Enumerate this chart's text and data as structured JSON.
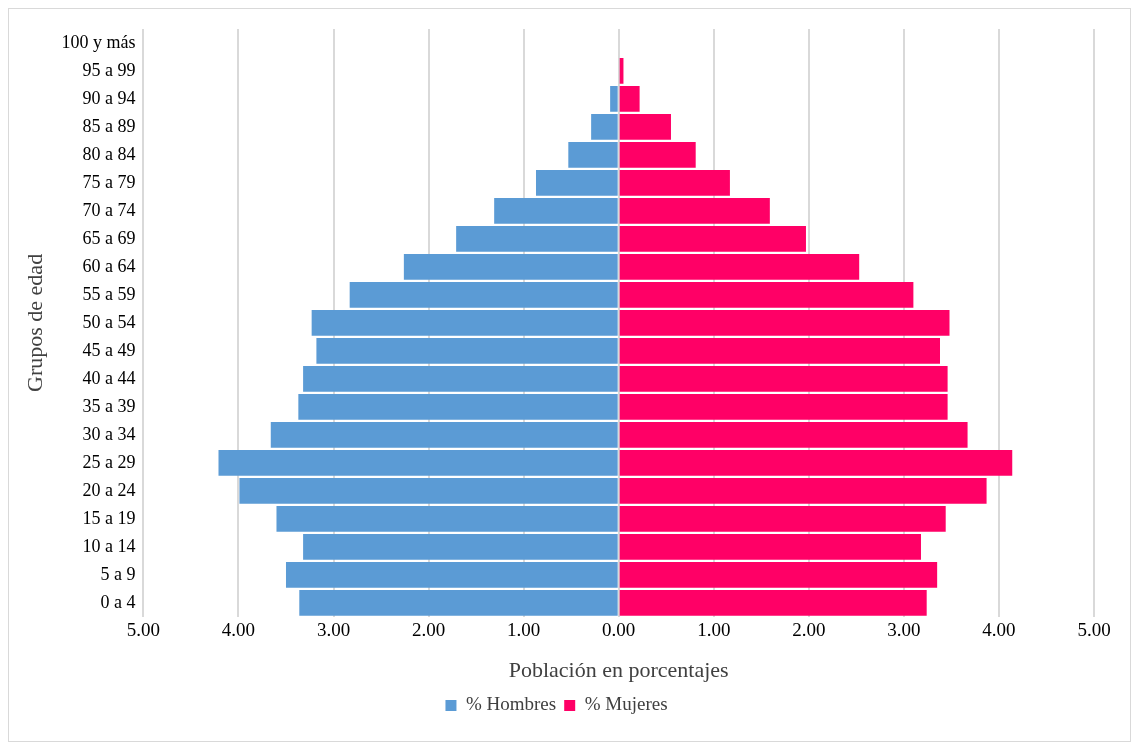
{
  "chart_data": {
    "type": "bar",
    "orientation": "horizontal",
    "stacked": true,
    "xlabel": "Población en porcentajes",
    "ylabel": "Grupos de edad",
    "categories": [
      "100 y más",
      "95 a 99",
      "90 a 94",
      "85 a 89",
      "80 a 84",
      "75 a 79",
      "70 a 74",
      "65 a 69",
      "60 a 64",
      "55 a 59",
      "50 a 54",
      "45 a 49",
      "40 a 44",
      "35 a 39",
      "30 a 34",
      "25 a 29",
      "20 a 24",
      "15 a 19",
      "10 a 14",
      "5 a 9",
      "0 a 4"
    ],
    "series": [
      {
        "name": "% Hombres",
        "color": "#5b9bd5",
        "values": [
          0,
          0,
          -0.09,
          -0.29,
          -0.53,
          -0.87,
          -1.31,
          -1.71,
          -2.26,
          -2.83,
          -3.23,
          -3.18,
          -3.32,
          -3.37,
          -3.66,
          -4.21,
          -3.99,
          -3.6,
          -3.32,
          -3.5,
          -3.36
        ]
      },
      {
        "name": "% Mujeres",
        "color": "#ff0066",
        "values": [
          0,
          0.05,
          0.22,
          0.55,
          0.81,
          1.17,
          1.59,
          1.97,
          2.53,
          3.1,
          3.48,
          3.38,
          3.46,
          3.46,
          3.67,
          4.14,
          3.87,
          3.44,
          3.18,
          3.35,
          3.24
        ]
      }
    ],
    "xlim": [
      -5,
      5
    ],
    "xticks": [
      {
        "value": -5,
        "label": "5.00"
      },
      {
        "value": -4,
        "label": "4.00"
      },
      {
        "value": -3,
        "label": "3.00"
      },
      {
        "value": -2,
        "label": "2.00"
      },
      {
        "value": -1,
        "label": "1.00"
      },
      {
        "value": 0,
        "label": "0.00"
      },
      {
        "value": 1,
        "label": "1.00"
      },
      {
        "value": 2,
        "label": "2.00"
      },
      {
        "value": 3,
        "label": "3.00"
      },
      {
        "value": 4,
        "label": "4.00"
      },
      {
        "value": 5,
        "label": "5.00"
      }
    ],
    "grid": "x",
    "legend": "bottom"
  }
}
